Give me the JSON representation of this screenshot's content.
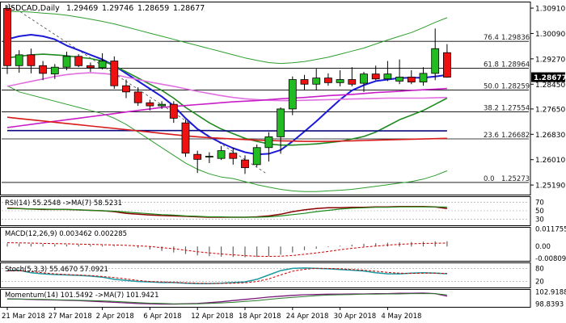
{
  "chart_data": {
    "type": "candlestick",
    "title": "USDCAD,Daily",
    "ohlc_readout": [
      "1.29469",
      "1.29746",
      "1.28659",
      "1.28677"
    ],
    "y_ticks": [
      "1.30910",
      "1.30090",
      "1.29270",
      "1.28450",
      "1.27650",
      "1.26830",
      "1.26010",
      "1.25190"
    ],
    "y_range": [
      1.2488,
      1.3112
    ],
    "last_price": "1.28677",
    "x_labels": [
      {
        "label": "21 Mar 2018",
        "index": 0
      },
      {
        "label": "27 Mar 2018",
        "index": 4
      },
      {
        "label": "2 Apr 2018",
        "index": 8
      },
      {
        "label": "6 Apr 2018",
        "index": 12
      },
      {
        "label": "12 Apr 2018",
        "index": 16
      },
      {
        "label": "18 Apr 2018",
        "index": 20
      },
      {
        "label": "24 Apr 2018",
        "index": 24
      },
      {
        "label": "30 Apr 2018",
        "index": 28
      },
      {
        "label": "4 May 2018",
        "index": 32
      }
    ],
    "candles": [
      [
        1.309,
        1.31,
        1.2878,
        1.2905
      ],
      [
        1.2905,
        1.2955,
        1.2882,
        1.294
      ],
      [
        1.294,
        1.296,
        1.288,
        1.2905
      ],
      [
        1.2905,
        1.292,
        1.2858,
        1.288
      ],
      [
        1.2878,
        1.291,
        1.2862,
        1.29
      ],
      [
        1.29,
        1.295,
        1.289,
        1.2935
      ],
      [
        1.2935,
        1.2942,
        1.29,
        1.2905
      ],
      [
        1.2905,
        1.2915,
        1.2885,
        1.2898
      ],
      [
        1.2898,
        1.2945,
        1.2893,
        1.292
      ],
      [
        1.292,
        1.2935,
        1.283,
        1.284
      ],
      [
        1.284,
        1.286,
        1.28,
        1.282
      ],
      [
        1.282,
        1.2835,
        1.2775,
        1.2785
      ],
      [
        1.2785,
        1.2795,
        1.276,
        1.2775
      ],
      [
        1.2775,
        1.279,
        1.2765,
        1.278
      ],
      [
        1.278,
        1.279,
        1.272,
        1.2735
      ],
      [
        1.272,
        1.273,
        1.261,
        1.2622
      ],
      [
        1.2618,
        1.263,
        1.2558,
        1.2602
      ],
      [
        1.261,
        1.2625,
        1.259,
        1.2612
      ],
      [
        1.2605,
        1.2645,
        1.26,
        1.263
      ],
      [
        1.2622,
        1.264,
        1.2585,
        1.2605
      ],
      [
        1.26,
        1.2615,
        1.2555,
        1.2575
      ],
      [
        1.2585,
        1.265,
        1.2578,
        1.264
      ],
      [
        1.264,
        1.269,
        1.2595,
        1.2675
      ],
      [
        1.2675,
        1.277,
        1.262,
        1.2765
      ],
      [
        1.2765,
        1.287,
        1.2745,
        1.286
      ],
      [
        1.286,
        1.2875,
        1.2825,
        1.2845
      ],
      [
        1.2845,
        1.2895,
        1.2825,
        1.2865
      ],
      [
        1.2865,
        1.288,
        1.284,
        1.285
      ],
      [
        1.285,
        1.289,
        1.2838,
        1.286
      ],
      [
        1.286,
        1.29,
        1.2838,
        1.2845
      ],
      [
        1.2848,
        1.2885,
        1.282,
        1.2878
      ],
      [
        1.2878,
        1.2905,
        1.2858,
        1.2862
      ],
      [
        1.2862,
        1.292,
        1.2855,
        1.2878
      ],
      [
        1.2855,
        1.2925,
        1.2845,
        1.2868
      ],
      [
        1.2868,
        1.289,
        1.2845,
        1.2852
      ],
      [
        1.2852,
        1.29,
        1.284,
        1.288
      ],
      [
        1.288,
        1.3025,
        1.2858,
        1.296
      ],
      [
        1.29469,
        1.29746,
        1.28659,
        1.28677
      ]
    ],
    "fib_levels": [
      {
        "label": "76.4",
        "value": "1.29836"
      },
      {
        "label": "61.8",
        "value": "1.28964"
      },
      {
        "label": "50.0",
        "value": "1.28259"
      },
      {
        "label": "38.2",
        "value": "1.27554"
      },
      {
        "label": "23.6",
        "value": "1.26682"
      },
      {
        "label": "0.0",
        "value": "1.25273"
      }
    ],
    "moving_averages": [
      {
        "color": "#1a1ad8",
        "values": [
          1.299,
          1.3,
          1.3005,
          1.3,
          1.299,
          1.297,
          1.2955,
          1.294,
          1.2925,
          1.2905,
          1.288,
          1.2855,
          1.283,
          1.2805,
          1.2775,
          1.2735,
          1.27,
          1.2675,
          1.2655,
          1.2638,
          1.2625,
          1.2618,
          1.262,
          1.2632,
          1.266,
          1.2692,
          1.2725,
          1.276,
          1.2795,
          1.2825,
          1.2842,
          1.2855,
          1.286,
          1.2865,
          1.2866,
          1.2866,
          1.287,
          1.2875
        ]
      },
      {
        "color": "#1f8a1f",
        "values": [
          1.293,
          1.2935,
          1.294,
          1.2942,
          1.294,
          1.2937,
          1.2932,
          1.2928,
          1.292,
          1.2905,
          1.2885,
          1.2865,
          1.2845,
          1.2825,
          1.28,
          1.277,
          1.2745,
          1.272,
          1.27,
          1.2685,
          1.267,
          1.266,
          1.2652,
          1.2648,
          1.2648,
          1.265,
          1.2652,
          1.2656,
          1.266,
          1.2668,
          1.2676,
          1.269,
          1.271,
          1.273,
          1.2745,
          1.276,
          1.278,
          1.28
        ]
      },
      {
        "color": "#e070e0",
        "values": [
          1.2838,
          1.2846,
          1.2854,
          1.2862,
          1.287,
          1.2876,
          1.288,
          1.2882,
          1.288,
          1.2876,
          1.2868,
          1.286,
          1.2852,
          1.2845,
          1.2838,
          1.283,
          1.2822,
          1.2815,
          1.2808,
          1.2802,
          1.2798,
          1.2795,
          1.2793,
          1.2792,
          1.2792,
          1.2793,
          1.2794,
          1.2795,
          1.2796,
          1.2797,
          1.2798,
          1.2799,
          1.28,
          1.28,
          1.28,
          1.28,
          1.2801,
          1.2802
        ]
      },
      {
        "color": "#c81ec8",
        "values": [
          1.2705,
          1.271,
          1.2715,
          1.272,
          1.2725,
          1.273,
          1.2735,
          1.274,
          1.2745,
          1.275,
          1.2755,
          1.276,
          1.2765,
          1.277,
          1.2773,
          1.2776,
          1.2779,
          1.2782,
          1.2785,
          1.2788,
          1.279,
          1.2792,
          1.2795,
          1.2798,
          1.28,
          1.2802,
          1.2805,
          1.2808,
          1.281,
          1.2812,
          1.2815,
          1.2818,
          1.282,
          1.2822,
          1.2825,
          1.2827,
          1.2829,
          1.2831
        ]
      },
      {
        "color": "#0a0a80",
        "values": [
          1.2695,
          1.2695,
          1.2695,
          1.2695,
          1.2695,
          1.2695,
          1.2695,
          1.2695,
          1.2695,
          1.2695,
          1.2695,
          1.2695,
          1.2695,
          1.2695,
          1.2695,
          1.2695,
          1.2695,
          1.2695,
          1.2694,
          1.2694,
          1.2694,
          1.2694,
          1.2694,
          1.2694,
          1.2694,
          1.2694,
          1.2694,
          1.2694,
          1.2694,
          1.2694,
          1.2694,
          1.2694,
          1.2694,
          1.2694,
          1.2694,
          1.2694,
          1.2694,
          1.2694
        ]
      },
      {
        "color": "#d81a1a",
        "values": [
          1.2738,
          1.2734,
          1.273,
          1.2726,
          1.2722,
          1.2718,
          1.2714,
          1.271,
          1.2706,
          1.2702,
          1.2698,
          1.2694,
          1.269,
          1.2686,
          1.2682,
          1.2678,
          1.2675,
          1.2672,
          1.267,
          1.2668,
          1.2666,
          1.2664,
          1.2663,
          1.2662,
          1.2661,
          1.266,
          1.266,
          1.266,
          1.2661,
          1.2662,
          1.2663,
          1.2664,
          1.2665,
          1.2666,
          1.2667,
          1.2668,
          1.2669,
          1.267
        ]
      }
    ],
    "bollinger": {
      "color": "#2e9e2e",
      "upper": [
        1.308,
        1.308,
        1.3078,
        1.3075,
        1.3072,
        1.3068,
        1.3062,
        1.3055,
        1.3048,
        1.304,
        1.303,
        1.302,
        1.301,
        1.3,
        1.299,
        1.298,
        1.297,
        1.296,
        1.295,
        1.294,
        1.293,
        1.2922,
        1.2915,
        1.2912,
        1.2914,
        1.2918,
        1.2925,
        1.2932,
        1.2942,
        1.2952,
        1.2962,
        1.2975,
        1.2988,
        1.3,
        1.3012,
        1.3028,
        1.3045,
        1.306
      ],
      "lower": [
        1.284,
        1.282,
        1.281,
        1.28,
        1.279,
        1.278,
        1.277,
        1.276,
        1.275,
        1.2735,
        1.2715,
        1.269,
        1.2665,
        1.264,
        1.2615,
        1.259,
        1.257,
        1.2555,
        1.2545,
        1.254,
        1.253,
        1.252,
        1.2512,
        1.2505,
        1.25,
        1.2498,
        1.2498,
        1.25,
        1.2502,
        1.2505,
        1.251,
        1.2515,
        1.252,
        1.2525,
        1.253,
        1.2538,
        1.255,
        1.2565
      ]
    }
  },
  "rsi": {
    "label": "RSI(14) 55.2548 ->MA(7) 58.5231",
    "ticks": [
      "70",
      "50",
      "30"
    ],
    "range": [
      20,
      80
    ],
    "values": [
      56,
      55,
      54,
      53,
      53,
      53,
      52,
      51,
      50,
      48,
      44,
      42,
      40,
      39,
      38,
      37,
      36,
      35,
      35,
      35,
      35,
      36,
      38,
      42,
      48,
      52,
      55,
      57,
      57,
      58,
      58,
      59,
      59,
      60,
      60,
      60,
      59,
      55.25
    ],
    "ma": [
      55,
      55,
      54,
      54,
      53,
      53,
      52,
      51,
      50,
      49,
      47,
      45,
      43,
      41,
      40,
      38,
      37,
      36,
      36,
      35,
      35,
      35,
      36,
      38,
      41,
      44,
      48,
      51,
      54,
      56,
      57,
      58,
      58,
      59,
      59,
      59,
      59,
      58.52
    ]
  },
  "macd": {
    "label": "MACD(12,26,9) 0.003462 0.002285",
    "ticks": [
      "0.011755",
      "0.00",
      "-0.008095"
    ],
    "range": [
      -0.0085,
      0.012
    ],
    "histogram": [
      0.002,
      0.002,
      0.0018,
      0.0016,
      0.0015,
      0.0014,
      0.0012,
      0.001,
      0.0008,
      0.0005,
      0.0,
      -0.001,
      -0.002,
      -0.003,
      -0.004,
      -0.005,
      -0.006,
      -0.0065,
      -0.0068,
      -0.007,
      -0.0072,
      -0.007,
      -0.0065,
      -0.0055,
      -0.004,
      -0.0025,
      -0.0015,
      -0.0005,
      0.0005,
      0.0012,
      0.0018,
      0.0022,
      0.0025,
      0.0028,
      0.003,
      0.0032,
      0.0035,
      0.0035
    ],
    "signal": [
      0.0025,
      0.0024,
      0.0023,
      0.0021,
      0.0019,
      0.0018,
      0.0016,
      0.0014,
      0.0012,
      0.001,
      0.0008,
      0.0004,
      0.0,
      -0.0008,
      -0.0015,
      -0.0025,
      -0.0035,
      -0.0043,
      -0.005,
      -0.0056,
      -0.0061,
      -0.0065,
      -0.0066,
      -0.0065,
      -0.006,
      -0.0052,
      -0.0043,
      -0.0033,
      -0.0022,
      -0.0012,
      -0.0004,
      0.0003,
      0.0009,
      0.0014,
      0.0018,
      0.002,
      0.0022,
      0.0023
    ]
  },
  "stoch": {
    "label": "Stoch(5,3,3) 55.4670 57.0921",
    "ticks": [
      "80",
      "20"
    ],
    "range": [
      0,
      100
    ],
    "k": [
      70,
      72,
      60,
      55,
      52,
      50,
      48,
      45,
      40,
      30,
      25,
      20,
      18,
      15,
      15,
      12,
      10,
      10,
      12,
      15,
      18,
      30,
      50,
      70,
      80,
      82,
      80,
      78,
      75,
      72,
      68,
      60,
      55,
      55,
      58,
      60,
      58,
      55.47
    ],
    "d": [
      68,
      70,
      66,
      60,
      55,
      52,
      50,
      47,
      43,
      38,
      32,
      25,
      20,
      18,
      16,
      14,
      12,
      11,
      11,
      12,
      14,
      20,
      32,
      50,
      67,
      76,
      80,
      80,
      78,
      75,
      72,
      67,
      62,
      58,
      57,
      58,
      58,
      57.09
    ]
  },
  "momentum": {
    "label": "Momentum(14) 101.5492 ->MA(7) 101.9421",
    "ticks": [
      "102.9188",
      "98.8393"
    ],
    "range": [
      98.4,
      103.4
    ],
    "values": [
      100.6,
      100.5,
      100.4,
      100.3,
      100.2,
      100.1,
      100.0,
      99.8,
      99.6,
      99.4,
      99.2,
      99.0,
      98.9,
      98.8,
      98.8,
      98.9,
      99.0,
      99.3,
      99.6,
      100.0,
      100.4,
      100.8,
      101.2,
      101.5,
      101.8,
      102.0,
      102.1,
      102.2,
      102.2,
      102.3,
      102.3,
      102.4,
      102.4,
      102.5,
      102.5,
      102.6,
      102.4,
      101.55
    ],
    "ma": [
      100.5,
      100.5,
      100.4,
      100.4,
      100.3,
      100.2,
      100.1,
      100.0,
      99.9,
      99.7,
      99.5,
      99.3,
      99.1,
      99.0,
      98.9,
      98.9,
      98.9,
      99.0,
      99.2,
      99.4,
      99.7,
      100.0,
      100.4,
      100.8,
      101.1,
      101.4,
      101.7,
      101.9,
      102.0,
      102.1,
      102.2,
      102.2,
      102.3,
      102.3,
      102.4,
      102.4,
      102.4,
      101.94
    ]
  }
}
